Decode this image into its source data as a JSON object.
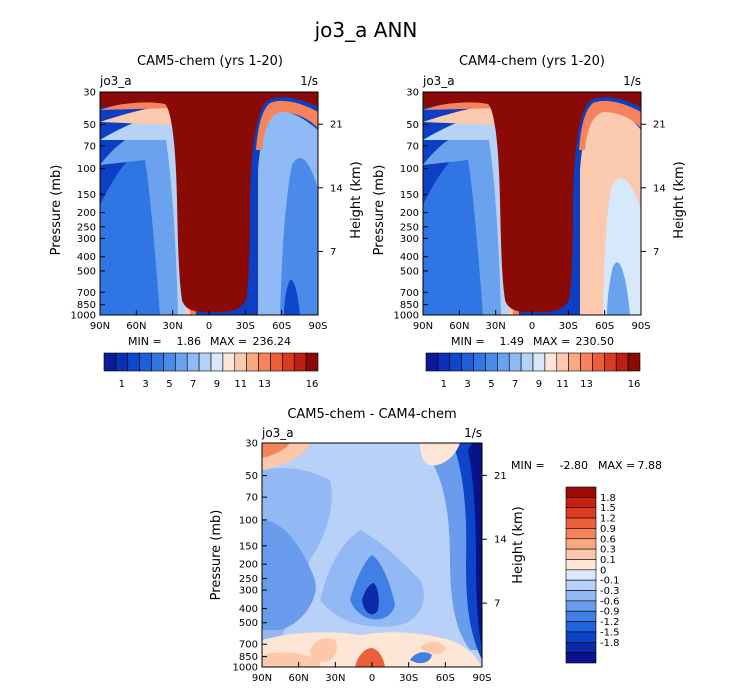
{
  "figure_title": "jo3_a ANN",
  "colors": {
    "main_scale": [
      "#0a1a9a",
      "#0b2fb6",
      "#0d47cc",
      "#1d5fdb",
      "#2f75e3",
      "#4a8bea",
      "#6ba2f0",
      "#8fbaf5",
      "#b5d3f8",
      "#d8e8fb",
      "#fbe6d8",
      "#fbc9ad",
      "#f9a882",
      "#f5845d",
      "#eb5e3c",
      "#d93a22",
      "#bf1e12",
      "#8a0a05"
    ],
    "diff_scale": [
      "#08128a",
      "#0b2aa8",
      "#0e45c8",
      "#1f63dc",
      "#3f7fe6",
      "#6a9cee",
      "#93b9f4",
      "#b8d1f8",
      "#dbe7fb",
      "#fde6d6",
      "#fbc8ab",
      "#f9a882",
      "#f5845c",
      "#ec5f3d",
      "#dd3b22",
      "#c71f12",
      "#9c0c07"
    ]
  },
  "chart_data": [
    {
      "type": "heatmap",
      "title": "CAM5-chem (yrs 1-20)",
      "variable": "jo3_a",
      "units": "1/s",
      "xlabel": "",
      "ylabel": "Pressure (mb)",
      "y2label": "Height (km)",
      "x_ticks": [
        "90N",
        "60N",
        "30N",
        "0",
        "30S",
        "60S",
        "90S"
      ],
      "y_ticks": [
        30,
        50,
        70,
        100,
        150,
        200,
        250,
        300,
        400,
        500,
        700,
        850,
        1000
      ],
      "y2_ticks": [
        "21",
        "14",
        "7"
      ],
      "min_label": "MIN =",
      "min_value": "1.86",
      "max_label": "MAX =",
      "max_value": "236.24",
      "colorbar_labels": [
        "1",
        "3",
        "5",
        "7",
        "9",
        "11",
        "13",
        "16"
      ]
    },
    {
      "type": "heatmap",
      "title": "CAM4-chem (yrs 1-20)",
      "variable": "jo3_a",
      "units": "1/s",
      "xlabel": "",
      "ylabel": "Pressure (mb)",
      "y2label": "Height (km)",
      "x_ticks": [
        "90N",
        "60N",
        "30N",
        "0",
        "30S",
        "60S",
        "90S"
      ],
      "y_ticks": [
        30,
        50,
        70,
        100,
        150,
        200,
        250,
        300,
        400,
        500,
        700,
        850,
        1000
      ],
      "y2_ticks": [
        "21",
        "14",
        "7"
      ],
      "min_label": "MIN =",
      "min_value": "1.49",
      "max_label": "MAX =",
      "max_value": "230.50",
      "colorbar_labels": [
        "1",
        "3",
        "5",
        "7",
        "9",
        "11",
        "13",
        "16"
      ]
    },
    {
      "type": "heatmap",
      "title": "CAM5-chem - CAM4-chem",
      "variable": "jo3_a",
      "units": "1/s",
      "xlabel": "",
      "ylabel": "Pressure (mb)",
      "y2label": "Height (km)",
      "x_ticks": [
        "90N",
        "60N",
        "30N",
        "0",
        "30S",
        "60S",
        "90S"
      ],
      "y_ticks": [
        30,
        50,
        70,
        100,
        150,
        200,
        250,
        300,
        400,
        500,
        700,
        850,
        1000
      ],
      "y2_ticks": [
        "21",
        "14",
        "7"
      ],
      "min_label": "MIN =",
      "min_value": "-2.80",
      "max_label": "MAX =",
      "max_value": "7.88",
      "colorbar_labels": [
        "1.8",
        "1.5",
        "1.2",
        "0.9",
        "0.6",
        "0.3",
        "0.1",
        "0",
        "-0.1",
        "-0.3",
        "-0.6",
        "-0.9",
        "-1.2",
        "-1.5",
        "-1.8"
      ]
    }
  ]
}
